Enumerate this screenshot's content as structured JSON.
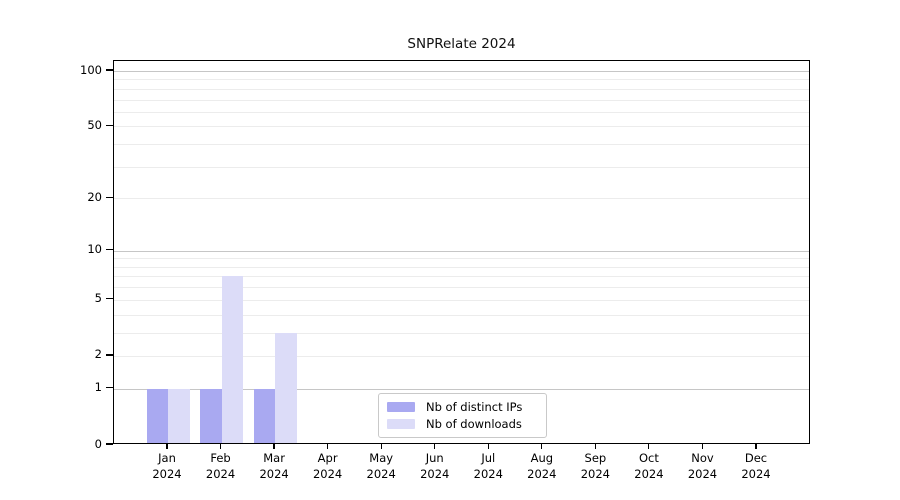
{
  "chart_data": {
    "type": "bar",
    "title": "SNPRelate 2024",
    "categories": [
      "Jan 2024",
      "Feb 2024",
      "Mar 2024",
      "Apr 2024",
      "May 2024",
      "Jun 2024",
      "Jul 2024",
      "Aug 2024",
      "Sep 2024",
      "Oct 2024",
      "Nov 2024",
      "Dec 2024"
    ],
    "x_ticks": [
      {
        "month": "Jan",
        "year": "2024"
      },
      {
        "month": "Feb",
        "year": "2024"
      },
      {
        "month": "Mar",
        "year": "2024"
      },
      {
        "month": "Apr",
        "year": "2024"
      },
      {
        "month": "May",
        "year": "2024"
      },
      {
        "month": "Jun",
        "year": "2024"
      },
      {
        "month": "Jul",
        "year": "2024"
      },
      {
        "month": "Aug",
        "year": "2024"
      },
      {
        "month": "Sep",
        "year": "2024"
      },
      {
        "month": "Oct",
        "year": "2024"
      },
      {
        "month": "Nov",
        "year": "2024"
      },
      {
        "month": "Dec",
        "year": "2024"
      }
    ],
    "series": [
      {
        "name": "Nb of distinct IPs",
        "color": "#a9a9f1",
        "values": [
          1,
          1,
          1,
          0,
          0,
          0,
          0,
          0,
          0,
          0,
          0,
          0
        ]
      },
      {
        "name": "Nb of downloads",
        "color": "#dcdcf8",
        "values": [
          1,
          7,
          3,
          0,
          0,
          0,
          0,
          0,
          0,
          0,
          0,
          0
        ]
      }
    ],
    "y_axis": {
      "scale": "log1p",
      "tick_values": [
        0,
        1,
        2,
        5,
        10,
        20,
        50,
        100
      ],
      "major_gridlines": [
        1,
        10,
        100
      ],
      "minor_gridlines": [
        2,
        3,
        4,
        5,
        6,
        7,
        8,
        9,
        20,
        30,
        40,
        50,
        60,
        70,
        80,
        90
      ],
      "range": [
        0,
        115
      ]
    },
    "grid": "horizontal",
    "legend_position": "bottom-center"
  }
}
